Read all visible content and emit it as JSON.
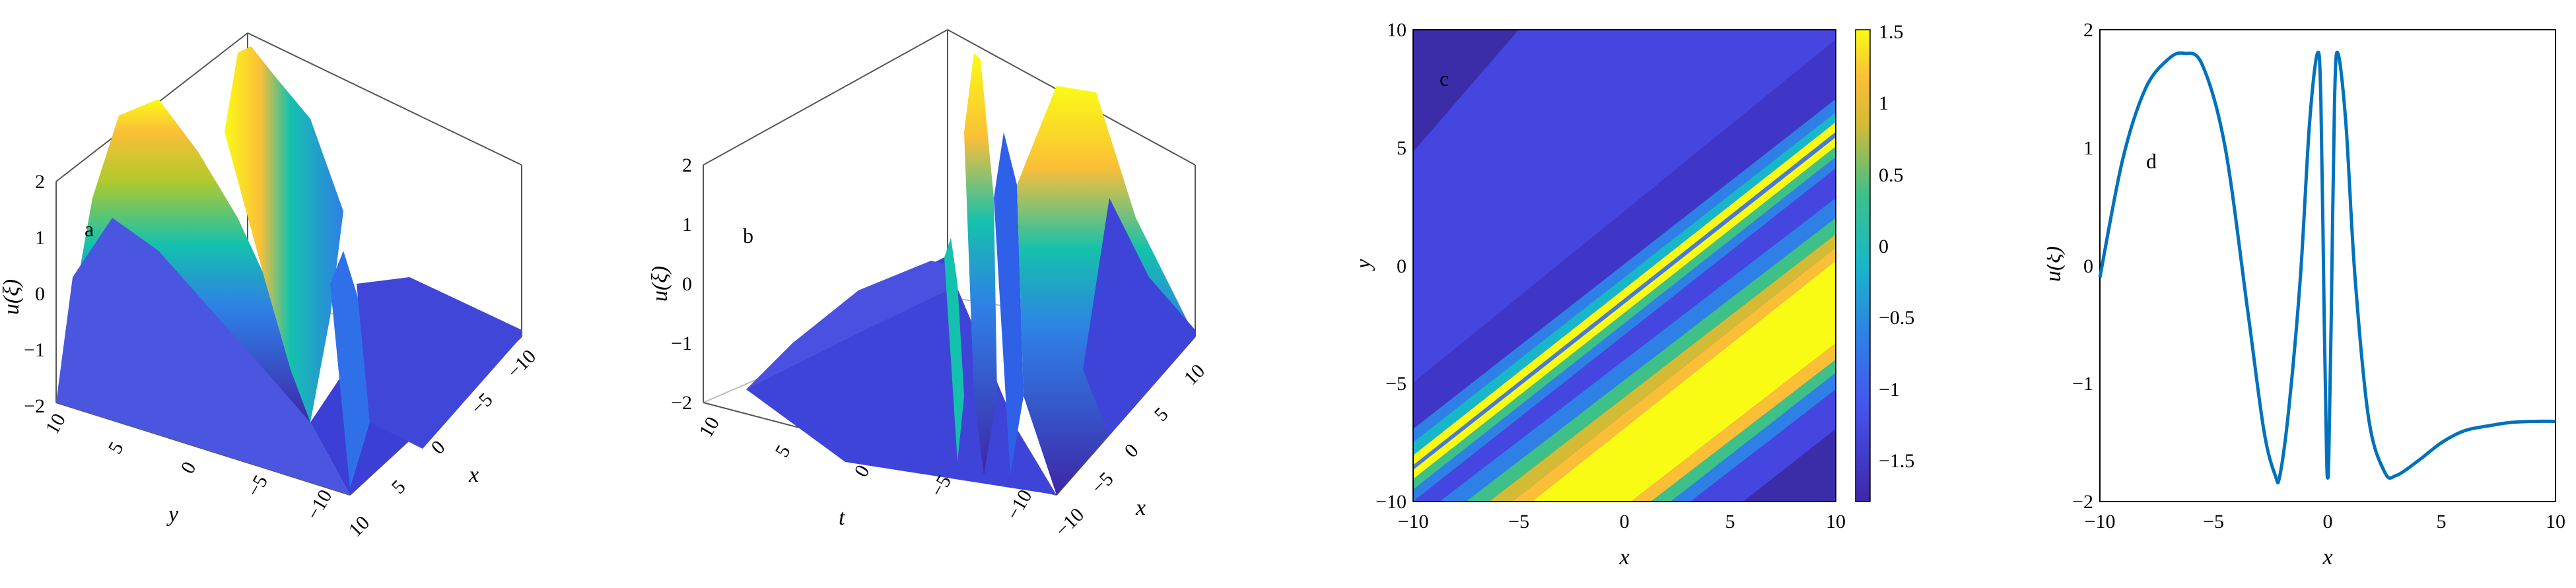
{
  "chart_data": [
    {
      "type": "surface",
      "panel_label": "a",
      "zlabel": "u(ξ)",
      "xlabel": "x",
      "ylabel": "y",
      "zticks": [
        "2",
        "1",
        "0",
        "−1",
        "−2"
      ],
      "xticks": [
        "−10",
        "−5",
        "0",
        "5",
        "10"
      ],
      "yticks": [
        "10",
        "5",
        "0",
        "−5",
        "−10"
      ],
      "zlim": [
        -2,
        2
      ],
      "colormap": "parula"
    },
    {
      "type": "surface",
      "panel_label": "b",
      "zlabel": "u(ξ)",
      "xlabel": "x",
      "ylabel": "t",
      "zticks": [
        "2",
        "1",
        "0",
        "−1",
        "−2"
      ],
      "xticks": [
        "10",
        "5",
        "0",
        "−5",
        "−10"
      ],
      "yticks": [
        "10",
        "5",
        "0",
        "−5",
        "−10"
      ],
      "zlim": [
        -2,
        2
      ],
      "colormap": "parula"
    },
    {
      "type": "heatmap",
      "panel_label": "c",
      "xlabel": "x",
      "ylabel": "y",
      "xlim": [
        -10,
        10
      ],
      "ylim": [
        -10,
        10
      ],
      "xticks": [
        "−10",
        "−5",
        "0",
        "5",
        "10"
      ],
      "yticks": [
        "10",
        "5",
        "0",
        "−5",
        "−10"
      ],
      "colorbar_ticks": [
        "1.5",
        "1",
        "0.5",
        "0",
        "−0.5",
        "−1",
        "−1.5"
      ],
      "colorbar_range": [
        -1.8,
        1.5
      ],
      "colormap": "parula"
    },
    {
      "type": "line",
      "panel_label": "d",
      "xlabel": "x",
      "ylabel": "u(ξ)",
      "xlim": [
        -10,
        10
      ],
      "ylim": [
        -2,
        2
      ],
      "xticks": [
        "−10",
        "−5",
        "0",
        "5",
        "10"
      ],
      "yticks": [
        "2",
        "1",
        "0",
        "−1",
        "−2"
      ],
      "line_color": "#0072BD",
      "x": [
        -10,
        -9,
        -8,
        -7,
        -6.3,
        -5.5,
        -4.5,
        -3.5,
        -2.8,
        -2.3,
        -2.1,
        -1.7,
        -1.2,
        -0.8,
        -0.45,
        -0.3,
        -0.15,
        -0.05,
        0,
        0.05,
        0.15,
        0.3,
        0.45,
        0.8,
        1.2,
        1.8,
        2.5,
        3,
        4,
        5,
        6,
        7,
        8,
        9,
        10
      ],
      "y": [
        -0.1,
        0.9,
        1.5,
        1.75,
        1.8,
        1.7,
        1.0,
        -0.4,
        -1.4,
        -1.78,
        -1.78,
        -1.2,
        -0.1,
        1.2,
        1.8,
        1.4,
        -0.5,
        -1.6,
        -1.8,
        -1.6,
        -0.5,
        1.4,
        1.8,
        1.2,
        -0.1,
        -1.3,
        -1.75,
        -1.78,
        -1.65,
        -1.5,
        -1.4,
        -1.36,
        -1.33,
        -1.32,
        -1.32
      ]
    }
  ]
}
